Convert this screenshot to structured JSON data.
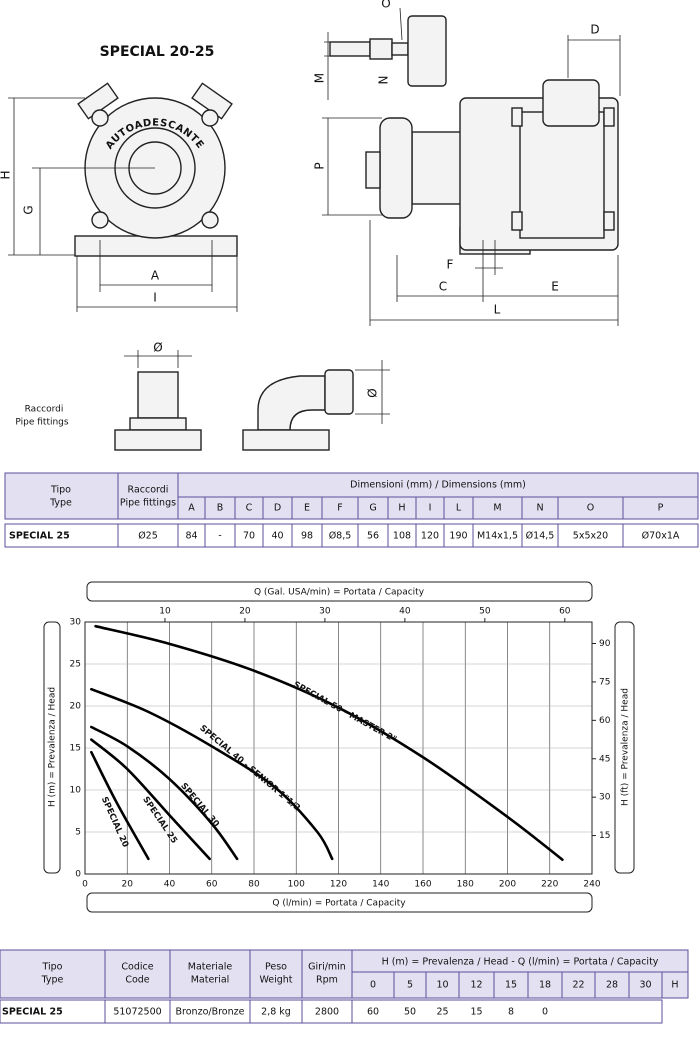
{
  "drawing": {
    "title": "SPECIAL 20-25",
    "stamp": "AUTOADESCANTE",
    "front_labels": [
      "H",
      "G",
      "A",
      "I"
    ],
    "side_labels": [
      "O",
      "D",
      "M",
      "N",
      "P",
      "F",
      "C",
      "E",
      "L"
    ],
    "fittings": {
      "label": [
        "Raccordi",
        "Pipe fittings"
      ],
      "diameter_labels": [
        "Ø",
        "Ø"
      ]
    }
  },
  "table_dimensions": {
    "header": {
      "type": [
        "Tipo",
        "Type"
      ],
      "fittings": [
        "Raccordi",
        "Pipe fittings"
      ],
      "dimensions": "Dimensioni (mm) / Dimensions (mm)",
      "columns": [
        "A",
        "B",
        "C",
        "D",
        "E",
        "F",
        "G",
        "H",
        "I",
        "L",
        "M",
        "N",
        "O",
        "P"
      ]
    },
    "rows": [
      [
        "SPECIAL 25",
        "Ø25",
        84,
        "-",
        70,
        40,
        98,
        "Ø8,5",
        56,
        108,
        120,
        190,
        "M14x1,5",
        "Ø14,5",
        "5x5x20",
        "Ø70x1A"
      ]
    ]
  },
  "chart_data": {
    "type": "line",
    "x_label": "Q (l/min) = Portata / Capacity",
    "y_label": "H (m) = Prevalenza / Head",
    "x2_label": "Q (Gal. USA/min) = Portata / Capacity",
    "y2_label": "H (ft) = Prevalenza / Head",
    "xlim": [
      0,
      240
    ],
    "xticks": [
      0,
      20,
      40,
      60,
      80,
      100,
      120,
      140,
      160,
      180,
      200,
      220,
      240
    ],
    "ylim": [
      0,
      30
    ],
    "yticks": [
      0,
      5,
      10,
      15,
      20,
      25,
      30
    ],
    "x2lim": [
      0,
      63.4
    ],
    "x2ticks": [
      10,
      20,
      30,
      40,
      50,
      60
    ],
    "y2lim": [
      0,
      98.4
    ],
    "y2ticks": [
      15,
      30,
      45,
      60,
      75,
      90
    ],
    "grid": true,
    "series": [
      {
        "name": "SPECIAL 50 - MASTER 2\"",
        "color": "#000000",
        "x": [
          5,
          40,
          80,
          120,
          160,
          200,
          226
        ],
        "values": [
          29.5,
          27.4,
          24.2,
          19.8,
          13.9,
          6.8,
          1.7
        ]
      },
      {
        "name": "SPECIAL 40 - SENIOR 1\"1/2",
        "color": "#000000",
        "x": [
          3,
          30,
          60,
          90,
          110,
          117
        ],
        "values": [
          22,
          19.3,
          15.2,
          10.3,
          5,
          1.8
        ]
      },
      {
        "name": "SPECIAL 30",
        "color": "#000000",
        "x": [
          3,
          20,
          40,
          60,
          72
        ],
        "values": [
          17.5,
          15.2,
          11.3,
          6,
          1.8
        ]
      },
      {
        "name": "SPECIAL 25",
        "color": "#000000",
        "x": [
          3,
          20,
          40,
          59
        ],
        "values": [
          16,
          12.5,
          7,
          1.8
        ]
      },
      {
        "name": "SPECIAL 20",
        "color": "#000000",
        "x": [
          3,
          15,
          30
        ],
        "values": [
          14.5,
          8.5,
          1.8
        ]
      }
    ]
  },
  "table_performance": {
    "header": {
      "type": [
        "Tipo",
        "Type"
      ],
      "code": [
        "Codice",
        "Code"
      ],
      "material": [
        "Materiale",
        "Material"
      ],
      "weight": [
        "Peso",
        "Weight"
      ],
      "rpm": [
        "Giri/min",
        "Rpm"
      ],
      "curve": "H (m) = Prevalenza / Head - Q (l/min) = Portata / Capacity",
      "columns": [
        0,
        5,
        10,
        12,
        15,
        18,
        22,
        28,
        30,
        "H"
      ]
    },
    "rows": [
      [
        "SPECIAL 25",
        51072500,
        "Bronzo/Bronze",
        "2,8 kg",
        2800,
        60,
        50,
        25,
        15,
        8,
        0
      ]
    ]
  }
}
